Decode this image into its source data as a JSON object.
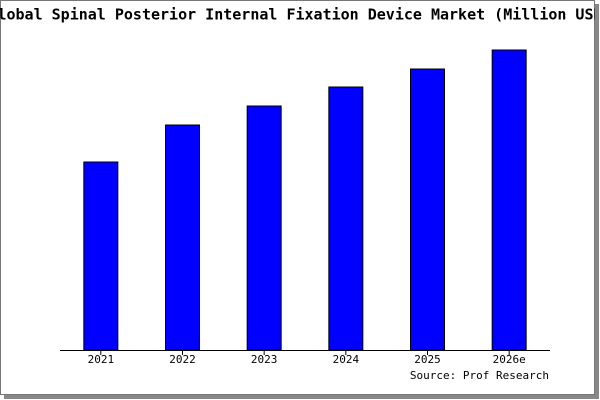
{
  "chart_data": {
    "type": "bar",
    "title": "Global Spinal Posterior Internal Fixation Device Market (Million USD)",
    "categories": [
      "2021",
      "2022",
      "2023",
      "2024",
      "2025",
      "2026e"
    ],
    "values": [
      188,
      225,
      244,
      263,
      281,
      300
    ],
    "color": "#0000ff",
    "ylim": [
      0,
      300
    ],
    "source": "Source: Prof Research"
  }
}
